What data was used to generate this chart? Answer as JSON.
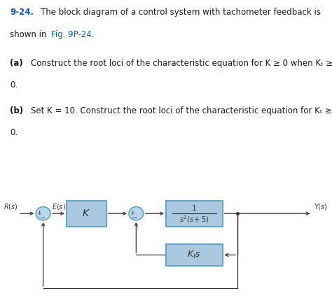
{
  "bg_color": "#ffffff",
  "text_color": "#1a1a1a",
  "blue_color": "#1155cc",
  "block_fill": "#aac9e0",
  "block_edge": "#5a9fc4",
  "circle_fill": "#b8d8ea",
  "circle_edge": "#5a9fc4",
  "sep_color": "#606060",
  "line1": "9-24.",
  "line1b": "The block diagram of a control system with tachometer feedback is",
  "line2": "shown in ",
  "line2b": "Fig. 9P-24.",
  "line3a": "(a)",
  "line3b": "Construct the root loci of the characteristic equation for K ≥ 0 when K",
  "line3c": "t",
  "line3d": " ≥",
  "line4": "0.",
  "line5a": "(b)",
  "line5b": "Set K = 10. Construct the root loci of the characteristic equation for K",
  "line5c": "t",
  "line5d": " ≥",
  "line6": "0.",
  "fs_body": 8.5,
  "fs_bold": 8.5
}
